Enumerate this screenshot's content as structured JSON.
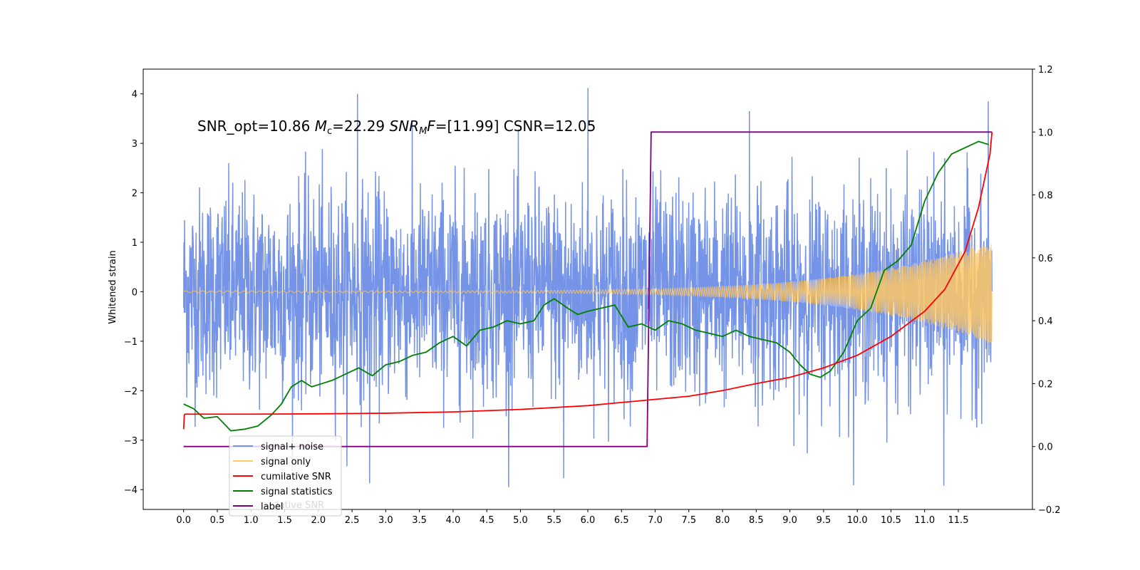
{
  "chart_data": {
    "type": "line",
    "ylabel": "Whitened strain",
    "xlim": [
      -0.6,
      12.6
    ],
    "ylim": [
      -4.4,
      4.5
    ],
    "y2lim": [
      -0.2,
      1.2
    ],
    "x_ticks": [
      "0.0",
      "0.5",
      "1.0",
      "1.5",
      "2.0",
      "2.5",
      "3.0",
      "3.5",
      "4.0",
      "4.5",
      "5.0",
      "5.5",
      "6.0",
      "6.5",
      "7.0",
      "7.5",
      "8.0",
      "8.5",
      "9.0",
      "9.5",
      "10.0",
      "10.5",
      "11.0",
      "11.5"
    ],
    "y_ticks": [
      "4",
      "3",
      "2",
      "1",
      "0",
      "−1",
      "−2",
      "−3",
      "−4"
    ],
    "y2_ticks": [
      "1.2",
      "1.0",
      "0.8",
      "0.6",
      "0.4",
      "0.2",
      "0.0",
      "−0.2"
    ],
    "annotation": {
      "prefix": "SNR_opt=10.86 ",
      "mc_sym": "M",
      "mc_sub": "c",
      "mc_val": "=22.29  ",
      "snr_sym": "SNR",
      "snr_sub": "M",
      "snr_f": "F",
      "snr_val": "=[11.99] CSNR=12.05"
    },
    "legend": [
      {
        "label": "signal+ noise",
        "color": "#7593e7"
      },
      {
        "label": "signal only",
        "color": "#ffc864"
      },
      {
        "label": "cumilative SNR",
        "color": "#ff0000"
      },
      {
        "label": "signal statistics",
        "color": "#008000"
      },
      {
        "label": "label",
        "color": "#800080"
      }
    ],
    "legend_ghost_text": "lative SNR",
    "series": [
      {
        "name": "signal+ noise",
        "axis": "left",
        "color": "#7593e7",
        "x_range": [
          0.0,
          12.0
        ],
        "noise_amplitude": 1.3,
        "peak_values": [
          4.0,
          4.12,
          3.85,
          -3.87,
          -3.77,
          -3.92,
          3.65
        ]
      },
      {
        "name": "signal only",
        "axis": "left",
        "color": "#ffc864",
        "x_range": [
          0.0,
          12.0
        ],
        "amplitude_start": 0.02,
        "amplitude_end": 1.05
      },
      {
        "name": "cumilative SNR",
        "axis": "right",
        "color": "#ff0000",
        "x": [
          0.0,
          0.01,
          0.02,
          1.0,
          2.0,
          3.0,
          4.0,
          5.0,
          6.0,
          6.5,
          7.0,
          7.5,
          8.0,
          8.5,
          9.0,
          9.5,
          10.0,
          10.5,
          11.0,
          11.3,
          11.6,
          11.8,
          11.9,
          11.97,
          12.0
        ],
        "values": [
          0.055,
          0.1,
          0.103,
          0.103,
          0.104,
          0.106,
          0.11,
          0.118,
          0.13,
          0.14,
          0.15,
          0.16,
          0.178,
          0.2,
          0.22,
          0.25,
          0.29,
          0.35,
          0.43,
          0.5,
          0.62,
          0.76,
          0.86,
          0.93,
          1.0
        ]
      },
      {
        "name": "signal statistics",
        "axis": "right",
        "color": "#008000",
        "x": [
          0.0,
          0.15,
          0.3,
          0.5,
          0.7,
          0.9,
          1.1,
          1.3,
          1.45,
          1.6,
          1.75,
          1.9,
          2.05,
          2.2,
          2.4,
          2.6,
          2.8,
          3.0,
          3.2,
          3.4,
          3.6,
          3.8,
          4.0,
          4.2,
          4.4,
          4.6,
          4.8,
          5.0,
          5.2,
          5.35,
          5.5,
          5.7,
          5.85,
          6.0,
          6.2,
          6.4,
          6.6,
          6.8,
          7.0,
          7.2,
          7.4,
          7.6,
          7.8,
          8.0,
          8.2,
          8.4,
          8.6,
          8.8,
          9.0,
          9.15,
          9.3,
          9.45,
          9.6,
          9.8,
          10.0,
          10.2,
          10.4,
          10.6,
          10.8,
          11.0,
          11.2,
          11.4,
          11.6,
          11.8,
          11.95
        ],
        "values": [
          0.135,
          0.12,
          0.09,
          0.095,
          0.05,
          0.055,
          0.065,
          0.1,
          0.135,
          0.19,
          0.21,
          0.19,
          0.2,
          0.21,
          0.23,
          0.25,
          0.225,
          0.26,
          0.27,
          0.29,
          0.3,
          0.33,
          0.35,
          0.32,
          0.37,
          0.38,
          0.4,
          0.39,
          0.4,
          0.45,
          0.47,
          0.44,
          0.42,
          0.43,
          0.44,
          0.45,
          0.38,
          0.39,
          0.37,
          0.4,
          0.39,
          0.37,
          0.36,
          0.35,
          0.37,
          0.35,
          0.34,
          0.33,
          0.3,
          0.26,
          0.23,
          0.22,
          0.24,
          0.3,
          0.4,
          0.44,
          0.56,
          0.59,
          0.64,
          0.78,
          0.87,
          0.93,
          0.95,
          0.97,
          0.96
        ]
      },
      {
        "name": "label",
        "axis": "right",
        "color": "#800080",
        "x": [
          0.0,
          6.88,
          6.94,
          12.0
        ],
        "values": [
          0.0,
          0.0,
          1.0,
          1.0
        ]
      }
    ]
  }
}
